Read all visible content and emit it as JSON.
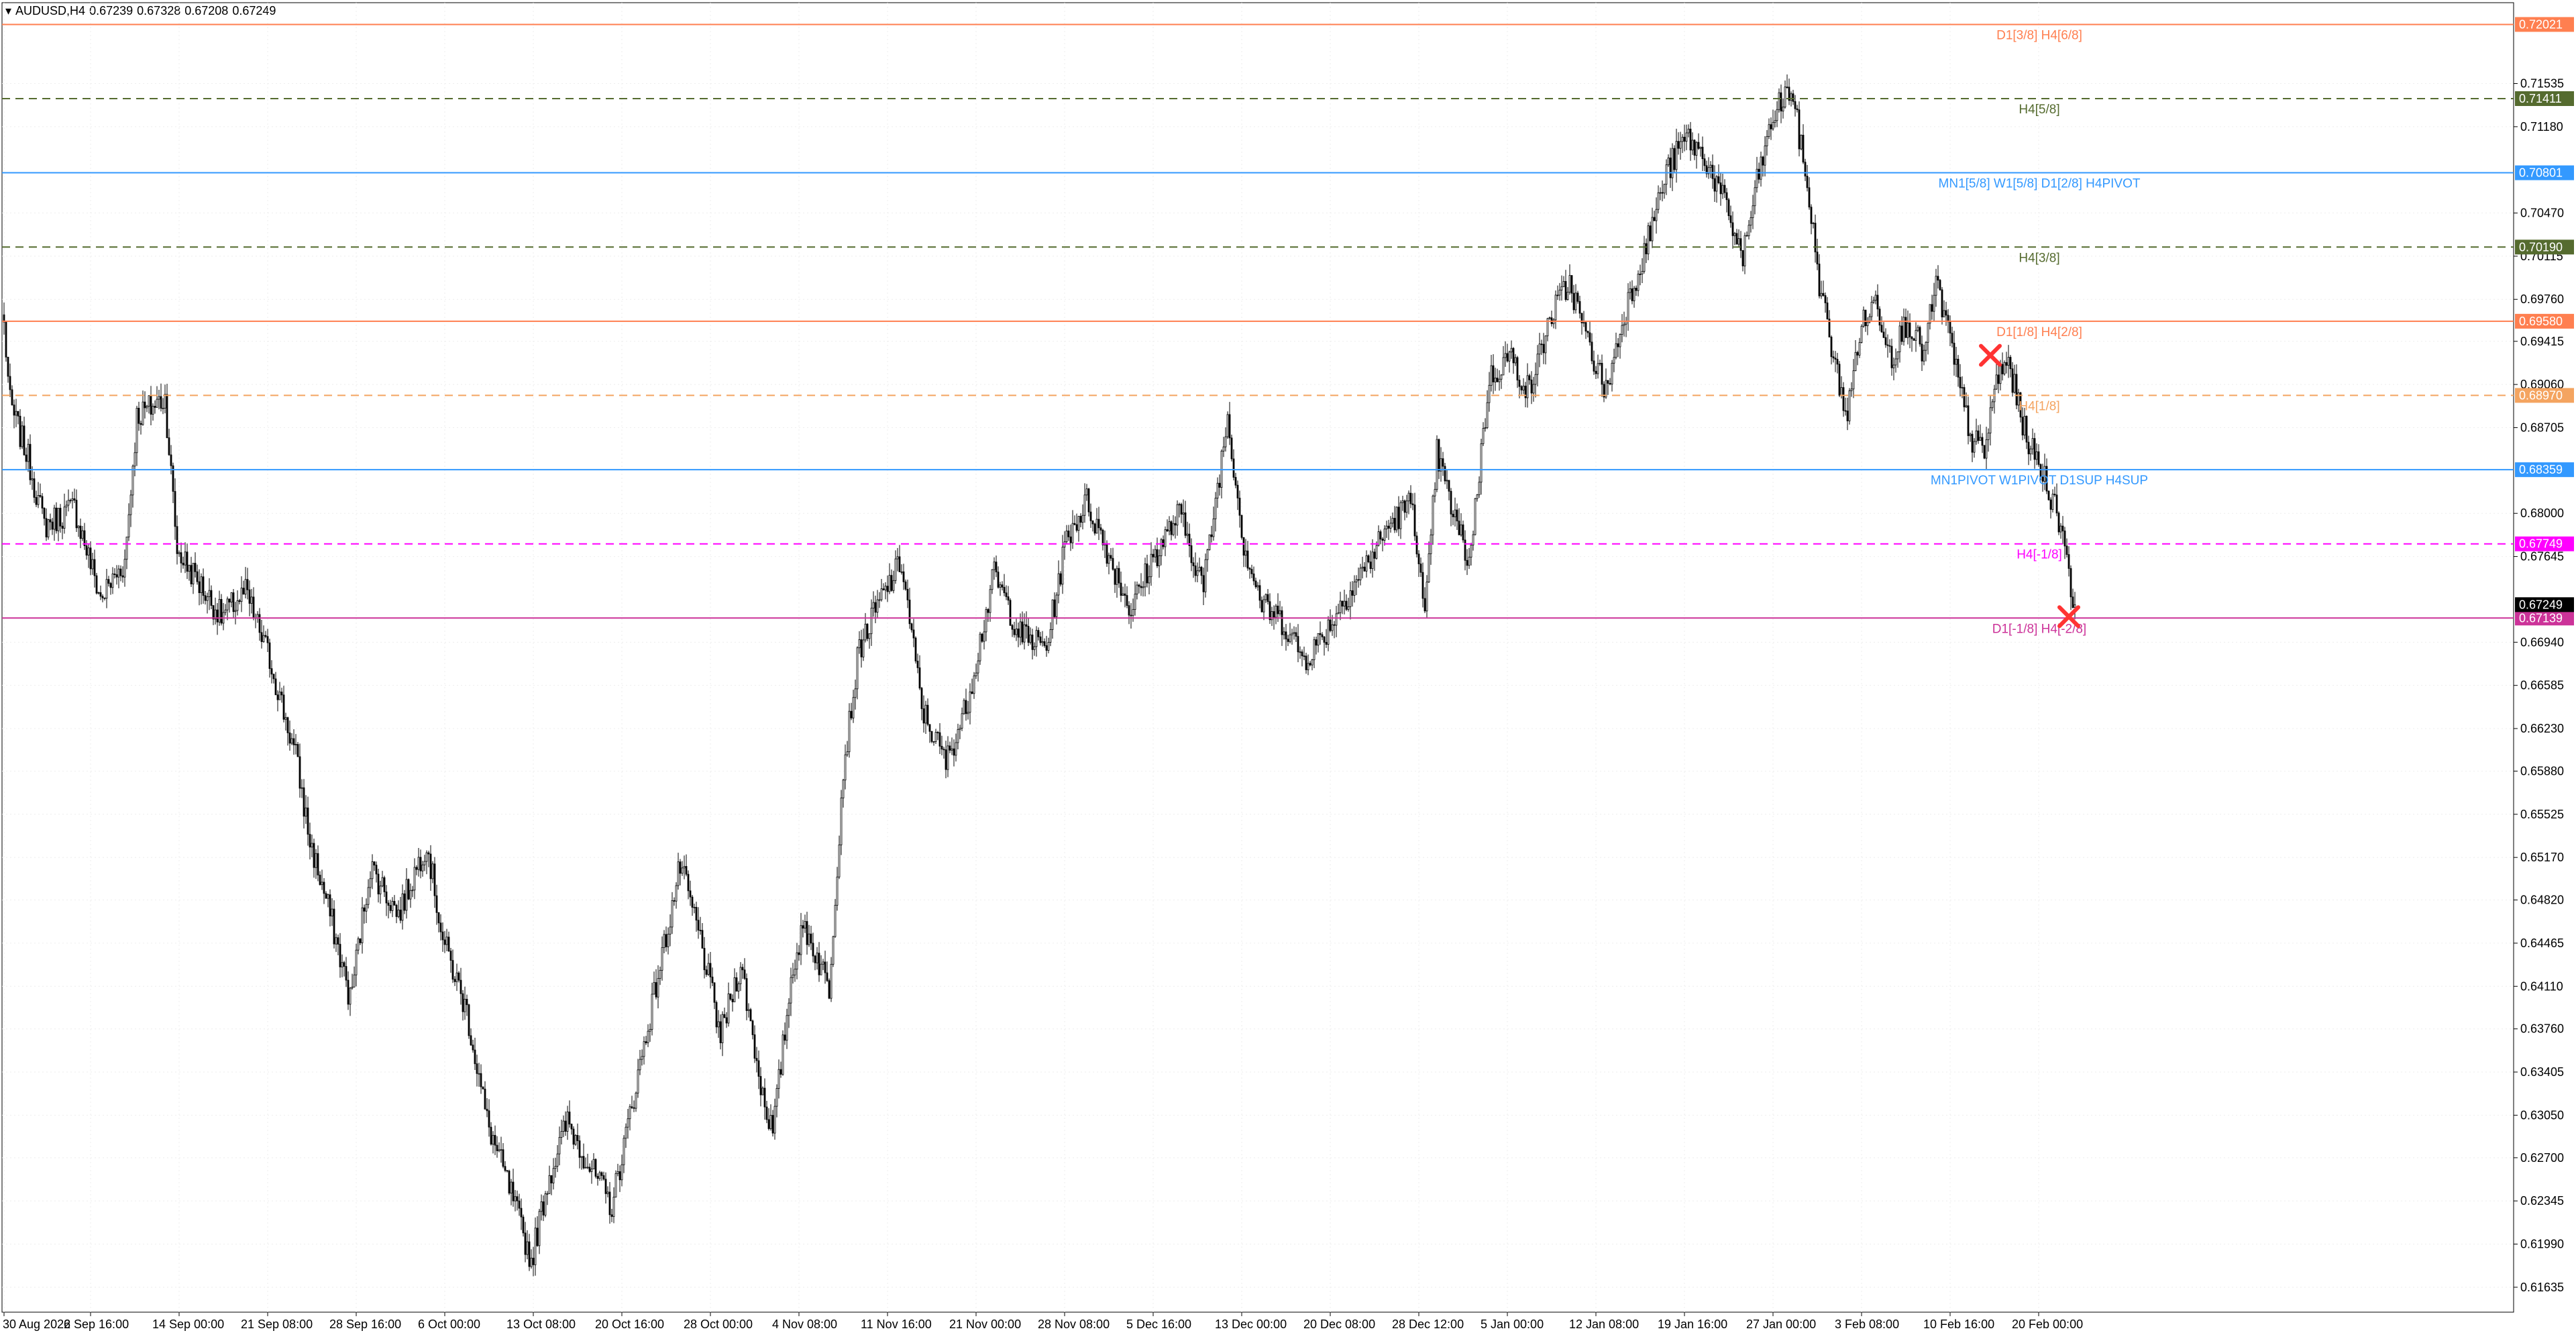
{
  "header": {
    "symbol_timeframe": "AUDUSD,H4",
    "open": "0.67239",
    "high": "0.67328",
    "low": "0.67208",
    "close": "0.67249"
  },
  "chart_data": {
    "type": "candlestick",
    "title": "",
    "xlabel": "",
    "ylabel": "",
    "ylim": [
      0.6143,
      0.722
    ],
    "grid": true,
    "y_ticks": [
      "0.71535",
      "0.71180",
      "0.70470",
      "0.70115",
      "0.69760",
      "0.69415",
      "0.69060",
      "0.68705",
      "0.68000",
      "0.67645",
      "0.66940",
      "0.66585",
      "0.66230",
      "0.65880",
      "0.65525",
      "0.65170",
      "0.64820",
      "0.64465",
      "0.64110",
      "0.63760",
      "0.63405",
      "0.63050",
      "0.62700",
      "0.62345",
      "0.61990",
      "0.61635"
    ],
    "x_ticks": [
      {
        "label": "30 Aug 2022",
        "bar": 0
      },
      {
        "label": "6 Sep 16:00",
        "bar": 43
      },
      {
        "label": "14 Sep 00:00",
        "bar": 87
      },
      {
        "label": "21 Sep 08:00",
        "bar": 131
      },
      {
        "label": "28 Sep 16:00",
        "bar": 175
      },
      {
        "label": "6 Oct 00:00",
        "bar": 219
      },
      {
        "label": "13 Oct 08:00",
        "bar": 263
      },
      {
        "label": "20 Oct 16:00",
        "bar": 307
      },
      {
        "label": "28 Oct 00:00",
        "bar": 351
      },
      {
        "label": "4 Nov 08:00",
        "bar": 395
      },
      {
        "label": "11 Nov 16:00",
        "bar": 439
      },
      {
        "label": "21 Nov 00:00",
        "bar": 483
      },
      {
        "label": "28 Nov 08:00",
        "bar": 527
      },
      {
        "label": "5 Dec 16:00",
        "bar": 571
      },
      {
        "label": "13 Dec 00:00",
        "bar": 615
      },
      {
        "label": "20 Dec 08:00",
        "bar": 659
      },
      {
        "label": "28 Dec 12:00",
        "bar": 703
      },
      {
        "label": "5 Jan 00:00",
        "bar": 747
      },
      {
        "label": "12 Jan 08:00",
        "bar": 791
      },
      {
        "label": "19 Jan 16:00",
        "bar": 835
      },
      {
        "label": "27 Jan 00:00",
        "bar": 879
      },
      {
        "label": "3 Feb 08:00",
        "bar": 923
      },
      {
        "label": "10 Feb 16:00",
        "bar": 967
      },
      {
        "label": "20 Feb 00:00",
        "bar": 1011
      }
    ],
    "anchors": [
      [
        0,
        0.6955
      ],
      [
        3,
        0.689
      ],
      [
        12,
        0.6845
      ],
      [
        20,
        0.679
      ],
      [
        35,
        0.6805
      ],
      [
        48,
        0.673
      ],
      [
        60,
        0.676
      ],
      [
        66,
        0.688
      ],
      [
        80,
        0.6895
      ],
      [
        86,
        0.677
      ],
      [
        100,
        0.6735
      ],
      [
        108,
        0.6715
      ],
      [
        120,
        0.6735
      ],
      [
        132,
        0.668
      ],
      [
        145,
        0.66
      ],
      [
        152,
        0.653
      ],
      [
        162,
        0.647
      ],
      [
        172,
        0.64
      ],
      [
        182,
        0.651
      ],
      [
        196,
        0.647
      ],
      [
        210,
        0.653
      ],
      [
        218,
        0.645
      ],
      [
        230,
        0.639
      ],
      [
        240,
        0.63
      ],
      [
        252,
        0.624
      ],
      [
        262,
        0.6185
      ],
      [
        270,
        0.625
      ],
      [
        280,
        0.63
      ],
      [
        292,
        0.626
      ],
      [
        302,
        0.623
      ],
      [
        314,
        0.633
      ],
      [
        325,
        0.642
      ],
      [
        336,
        0.651
      ],
      [
        346,
        0.645
      ],
      [
        356,
        0.637
      ],
      [
        366,
        0.643
      ],
      [
        376,
        0.633
      ],
      [
        382,
        0.629
      ],
      [
        392,
        0.643
      ],
      [
        398,
        0.646
      ],
      [
        410,
        0.641
      ],
      [
        417,
        0.659
      ],
      [
        425,
        0.669
      ],
      [
        436,
        0.673
      ],
      [
        446,
        0.676
      ],
      [
        456,
        0.664
      ],
      [
        468,
        0.6595
      ],
      [
        478,
        0.664
      ],
      [
        492,
        0.675
      ],
      [
        505,
        0.67
      ],
      [
        518,
        0.669
      ],
      [
        528,
        0.678
      ],
      [
        538,
        0.681
      ],
      [
        548,
        0.677
      ],
      [
        560,
        0.672
      ],
      [
        570,
        0.676
      ],
      [
        584,
        0.68
      ],
      [
        596,
        0.674
      ],
      [
        608,
        0.688
      ],
      [
        616,
        0.6775
      ],
      [
        625,
        0.6725
      ],
      [
        636,
        0.671
      ],
      [
        646,
        0.668
      ],
      [
        656,
        0.67
      ],
      [
        666,
        0.673
      ],
      [
        678,
        0.676
      ],
      [
        688,
        0.679
      ],
      [
        700,
        0.681
      ],
      [
        706,
        0.671
      ],
      [
        712,
        0.685
      ],
      [
        720,
        0.68
      ],
      [
        728,
        0.676
      ],
      [
        738,
        0.691
      ],
      [
        748,
        0.693
      ],
      [
        758,
        0.69
      ],
      [
        768,
        0.696
      ],
      [
        778,
        0.699
      ],
      [
        786,
        0.6945
      ],
      [
        796,
        0.69
      ],
      [
        806,
        0.697
      ],
      [
        816,
        0.702
      ],
      [
        826,
        0.708
      ],
      [
        836,
        0.711
      ],
      [
        846,
        0.709
      ],
      [
        856,
        0.705
      ],
      [
        864,
        0.701
      ],
      [
        872,
        0.708
      ],
      [
        880,
        0.713
      ],
      [
        888,
        0.715
      ],
      [
        896,
        0.707
      ],
      [
        902,
        0.699
      ],
      [
        910,
        0.692
      ],
      [
        916,
        0.688
      ],
      [
        922,
        0.695
      ],
      [
        930,
        0.6975
      ],
      [
        938,
        0.693
      ],
      [
        946,
        0.696
      ],
      [
        954,
        0.693
      ],
      [
        960,
        0.699
      ],
      [
        966,
        0.695
      ],
      [
        972,
        0.69
      ],
      [
        978,
        0.686
      ],
      [
        984,
        0.685
      ],
      [
        990,
        0.691
      ],
      [
        996,
        0.6925
      ],
      [
        1002,
        0.688
      ],
      [
        1008,
        0.685
      ],
      [
        1014,
        0.683
      ],
      [
        1020,
        0.68
      ],
      [
        1024,
        0.678
      ],
      [
        1027,
        0.674
      ],
      [
        1029,
        0.6725
      ]
    ],
    "levels": [
      {
        "value": 0.72021,
        "price_label": "0.72021",
        "label": "D1[3/8] H4[6/8]",
        "color": "#ff7f50",
        "style": "solid"
      },
      {
        "value": 0.71411,
        "price_label": "0.71411",
        "label": "H4[5/8]",
        "color": "#556b2f",
        "style": "dash"
      },
      {
        "value": 0.70801,
        "price_label": "0.70801",
        "label": "MN1[5/8] W1[5/8] D1[2/8] H4PIVOT",
        "color": "#3399ff",
        "style": "solid"
      },
      {
        "value": 0.7019,
        "price_label": "0.70190",
        "label": "H4[3/8]",
        "color": "#556b2f",
        "style": "dash"
      },
      {
        "value": 0.6958,
        "price_label": "0.69580",
        "label": "D1[1/8] H4[2/8]",
        "color": "#ff7f50",
        "style": "solid"
      },
      {
        "value": 0.6897,
        "price_label": "0.68970",
        "label": "H4[1/8]",
        "color": "#f4a460",
        "style": "dash"
      },
      {
        "value": 0.68359,
        "price_label": "0.68359",
        "label": "MN1PIVOT W1PIVOT D1SUP H4SUP",
        "color": "#3399ff",
        "style": "solid"
      },
      {
        "value": 0.67749,
        "price_label": "0.67749",
        "label": "H4[-1/8]",
        "color": "#ff00ff",
        "style": "dash"
      },
      {
        "value": 0.67139,
        "price_label": "0.67139",
        "label": "D1[-1/8] H4[-2/8]",
        "color": "#cc3399",
        "style": "solid"
      }
    ],
    "current_price": {
      "value": 0.67249,
      "label": "0.67249"
    },
    "markers": [
      {
        "type": "x",
        "bar": 987,
        "value": 0.693,
        "color": "#ff3333"
      },
      {
        "type": "x",
        "bar": 1026,
        "value": 0.6715,
        "color": "#ff3333"
      }
    ]
  }
}
